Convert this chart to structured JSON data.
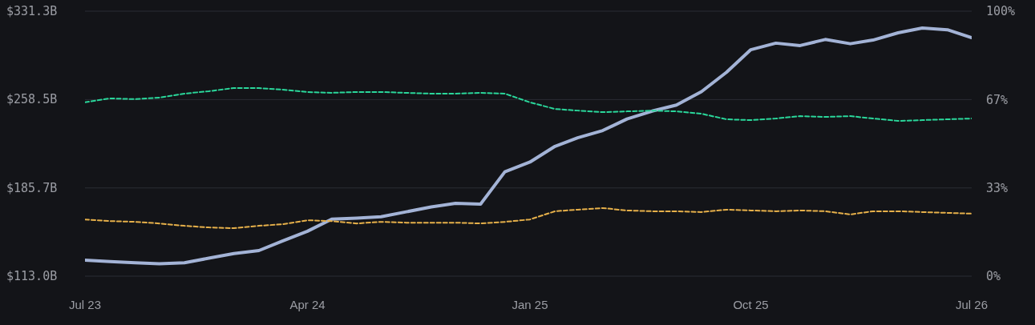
{
  "chart_data": {
    "type": "line",
    "x": [
      "2023-07-01",
      "2023-08-01",
      "2023-09-01",
      "2023-10-01",
      "2023-11-01",
      "2023-12-01",
      "2024-01-01",
      "2024-02-01",
      "2024-03-01",
      "2024-04-01",
      "2024-05-01",
      "2024-06-01",
      "2024-07-01",
      "2024-08-01",
      "2024-09-01",
      "2024-10-01",
      "2024-11-01",
      "2024-12-01",
      "2025-01-01",
      "2025-02-01",
      "2025-03-01",
      "2025-04-01",
      "2025-05-01",
      "2025-06-01",
      "2025-07-01",
      "2025-08-01",
      "2025-09-01",
      "2025-10-01",
      "2025-11-01",
      "2025-12-01",
      "2026-01-01",
      "2026-02-01",
      "2026-03-01",
      "2026-04-01",
      "2026-05-01",
      "2026-06-01",
      "2026-07-01"
    ],
    "series": [
      {
        "color": "#a3b3d6",
        "line_style": "solid",
        "values": [
          126.2,
          125,
          124,
          123.2,
          124,
          127.8,
          131.6,
          134.1,
          142,
          150,
          160,
          160.8,
          162,
          166,
          170,
          173,
          172.4,
          199,
          207,
          220,
          227,
          233,
          242.5,
          249,
          254,
          265,
          281,
          299.6,
          305,
          303,
          308,
          304.5,
          307.5,
          313.5,
          317.5,
          316,
          309.5
        ]
      },
      {
        "color": "#2ad69a",
        "line_style": "dashed",
        "axis": "y2",
        "values": [
          65.6,
          67.1,
          66.8,
          67.4,
          68.9,
          69.8,
          71,
          71,
          70.4,
          69.5,
          69.2,
          69.5,
          69.5,
          69.2,
          68.9,
          68.9,
          69.2,
          68.9,
          65.6,
          63.1,
          62.5,
          61.9,
          62.2,
          62.5,
          62.2,
          61.3,
          59.2,
          58.9,
          59.5,
          60.4,
          60.1,
          60.4,
          59.5,
          58.6,
          58.9,
          59.2,
          59.5
        ]
      },
      {
        "color": "#e6b04a",
        "line_style": "dashed",
        "axis": "y2",
        "values": [
          21.4,
          20.8,
          20.5,
          19.9,
          19,
          18.4,
          18.1,
          19,
          19.6,
          21.1,
          20.8,
          19.9,
          20.5,
          20.2,
          20.2,
          20.2,
          19.9,
          20.5,
          21.4,
          24.5,
          25.1,
          25.7,
          24.8,
          24.5,
          24.5,
          24.2,
          25.1,
          24.8,
          24.5,
          24.8,
          24.5,
          23.3,
          24.5,
          24.5,
          24.2,
          23.9,
          23.6
        ]
      }
    ],
    "xlim": [
      "2023-07-01",
      "2026-07-01"
    ],
    "xticks": [
      {
        "value": "2023-07-01",
        "label": "Jul 23"
      },
      {
        "value": "2024-04-01",
        "label": "Apr 24"
      },
      {
        "value": "2025-01-01",
        "label": "Jan 25"
      },
      {
        "value": "2025-10-01",
        "label": "Oct 25"
      },
      {
        "value": "2026-07-01",
        "label": "Jul 26"
      }
    ],
    "ylim": [
      113.0,
      331.3
    ],
    "yticks": [
      {
        "value": 113.0,
        "label": "$113.0B"
      },
      {
        "value": 185.7,
        "label": "$185.7B"
      },
      {
        "value": 258.5,
        "label": "$258.5B"
      },
      {
        "value": 331.3,
        "label": "$331.3B"
      }
    ],
    "y2lim": [
      0,
      100
    ],
    "y2ticks": [
      {
        "value": 0,
        "label": "0%"
      },
      {
        "value": 33.33,
        "label": "33%"
      },
      {
        "value": 66.67,
        "label": "67%"
      },
      {
        "value": 100,
        "label": "100%"
      }
    ],
    "grid": "y",
    "legend": false,
    "marker": "none"
  }
}
